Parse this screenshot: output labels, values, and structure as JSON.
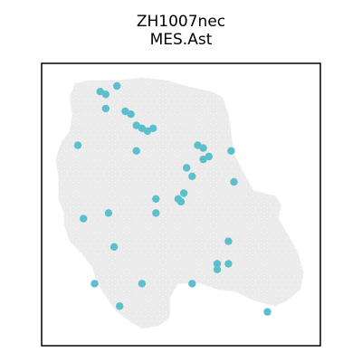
{
  "chart_data": {
    "type": "scatter",
    "title": "ZH1007nec",
    "subtitle": "MES.Ast",
    "xlabel": "",
    "ylabel": "",
    "axes_visible": false,
    "grid": false,
    "xlim": [
      0,
      100
    ],
    "ylim": [
      0,
      100
    ],
    "colors": {
      "background_spot": "#ebebeb",
      "highlight_spot": "#5bc0cc",
      "frame": "#000000"
    },
    "tissue_outline": [
      [
        12,
        93
      ],
      [
        17,
        94
      ],
      [
        28,
        94
      ],
      [
        36,
        95
      ],
      [
        45,
        94
      ],
      [
        52,
        92
      ],
      [
        61,
        90
      ],
      [
        65,
        88
      ],
      [
        67,
        82
      ],
      [
        68,
        76
      ],
      [
        69,
        68
      ],
      [
        72,
        62
      ],
      [
        76,
        55
      ],
      [
        80,
        54
      ],
      [
        84,
        53
      ],
      [
        86,
        50
      ],
      [
        85,
        45
      ],
      [
        88,
        40
      ],
      [
        92,
        33
      ],
      [
        94,
        26
      ],
      [
        93,
        20
      ],
      [
        88,
        16
      ],
      [
        84,
        14
      ],
      [
        76,
        16
      ],
      [
        70,
        19
      ],
      [
        63,
        20
      ],
      [
        57,
        22
      ],
      [
        49,
        22
      ],
      [
        46,
        17
      ],
      [
        46,
        10
      ],
      [
        42,
        7
      ],
      [
        36,
        6
      ],
      [
        31,
        9
      ],
      [
        27,
        12
      ],
      [
        24,
        16
      ],
      [
        20,
        22
      ],
      [
        18,
        28
      ],
      [
        14,
        33
      ],
      [
        10,
        37
      ],
      [
        8,
        43
      ],
      [
        8,
        47
      ],
      [
        6,
        52
      ],
      [
        6,
        60
      ],
      [
        5,
        66
      ],
      [
        7,
        72
      ],
      [
        10,
        76
      ],
      [
        11,
        82
      ],
      [
        10,
        88
      ]
    ],
    "highlight_points": [
      [
        21,
        90
      ],
      [
        23,
        89
      ],
      [
        27,
        92
      ],
      [
        23,
        84
      ],
      [
        30,
        83
      ],
      [
        32,
        82
      ],
      [
        34,
        78
      ],
      [
        36,
        77
      ],
      [
        38,
        76
      ],
      [
        40,
        77
      ],
      [
        13,
        71
      ],
      [
        34,
        69
      ],
      [
        56,
        71
      ],
      [
        58,
        70
      ],
      [
        60,
        67
      ],
      [
        58,
        66
      ],
      [
        68,
        69
      ],
      [
        52,
        63
      ],
      [
        54,
        60
      ],
      [
        69,
        58
      ],
      [
        51,
        54
      ],
      [
        49,
        52
      ],
      [
        50,
        51
      ],
      [
        41,
        52
      ],
      [
        15,
        45
      ],
      [
        24,
        47
      ],
      [
        41,
        47
      ],
      [
        26,
        35
      ],
      [
        67,
        37
      ],
      [
        63,
        29
      ],
      [
        67,
        29
      ],
      [
        63,
        27
      ],
      [
        19,
        22
      ],
      [
        36,
        22
      ],
      [
        54,
        22
      ],
      [
        28,
        14
      ],
      [
        81,
        12
      ]
    ]
  }
}
